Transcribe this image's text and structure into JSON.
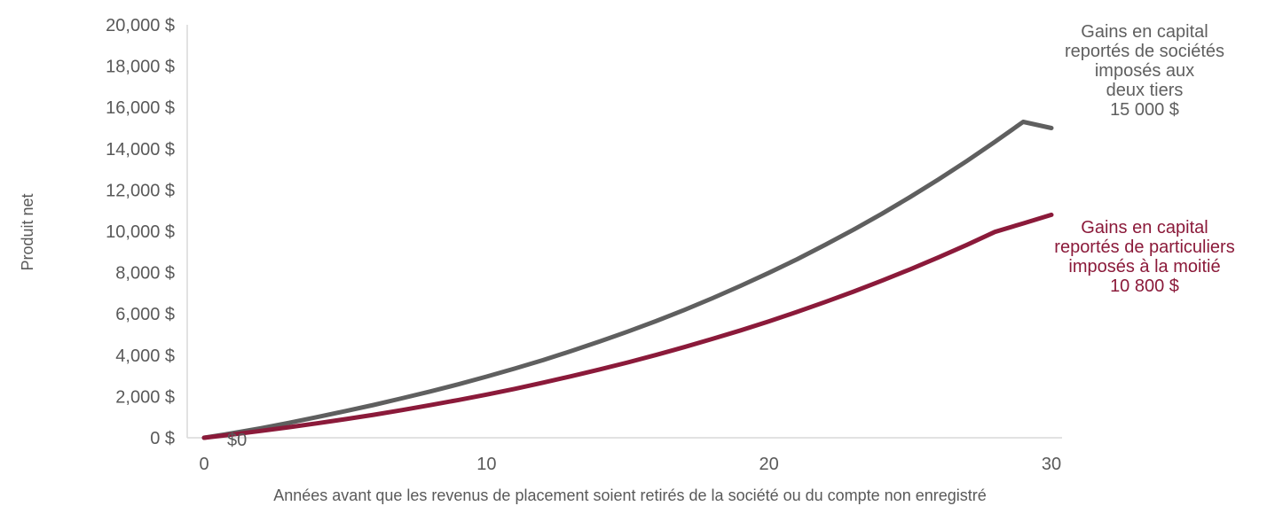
{
  "chart_data": {
    "type": "line",
    "title": "",
    "xlabel": "Années avant que les revenus de placement soient retirés de la société ou du compte non enregistré",
    "ylabel": "Produit net",
    "xlim": [
      0,
      30
    ],
    "ylim": [
      0,
      20000
    ],
    "x_ticks": [
      "0",
      "10",
      "20",
      "30"
    ],
    "y_ticks": [
      "0 $",
      "2,000 $",
      "4,000 $",
      "6,000 $",
      "8,000 $",
      "10,000 $",
      "12,000 $",
      "14,000 $",
      "16,000 $",
      "18,000 $",
      "20,000 $"
    ],
    "grid": false,
    "legend": "none",
    "x": [
      0,
      1,
      2,
      3,
      4,
      5,
      6,
      7,
      8,
      9,
      10,
      11,
      12,
      13,
      14,
      15,
      16,
      17,
      18,
      19,
      20,
      21,
      22,
      23,
      24,
      25,
      26,
      27,
      28,
      29,
      30
    ],
    "series": [
      {
        "color": "#5f5f5f",
        "values": [
          0,
          220,
          460,
          720,
          1000,
          1290,
          1590,
          1910,
          2240,
          2590,
          2960,
          3350,
          3760,
          4200,
          4660,
          5140,
          5650,
          6190,
          6760,
          7360,
          7990,
          8650,
          9350,
          10080,
          10850,
          11660,
          12510,
          13400,
          14330,
          15300,
          15000
        ]
      },
      {
        "color": "#8b1a3a",
        "values": [
          0,
          160,
          330,
          510,
          700,
          900,
          1110,
          1340,
          1580,
          1830,
          2090,
          2370,
          2670,
          2980,
          3310,
          3650,
          4010,
          4390,
          4790,
          5200,
          5640,
          6100,
          6580,
          7080,
          7610,
          8160,
          8740,
          9340,
          9970,
          10380,
          10800
        ]
      }
    ],
    "annotations": [
      {
        "color": "#5f5f5f",
        "lines": [
          "Gains en capital",
          "reportés de sociétés",
          "imposés aux",
          "deux tiers",
          "15 000 $"
        ]
      },
      {
        "color": "#8b1a3a",
        "lines": [
          "Gains en capital",
          "reportés de particuliers",
          "imposés à la moitié",
          "10 800 $"
        ]
      }
    ],
    "origin_label": "$0"
  }
}
